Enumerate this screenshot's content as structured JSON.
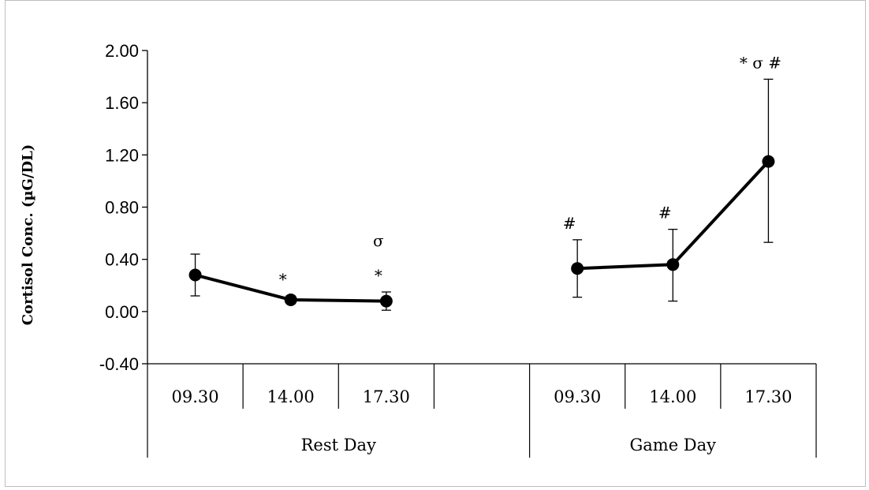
{
  "chart_data": {
    "type": "line",
    "ylabel": "Cortisol Conc. (µG/DL)",
    "ylim": [
      -0.4,
      2.0
    ],
    "yticks": [
      -0.4,
      0.0,
      0.4,
      0.8,
      1.2,
      1.6,
      2.0
    ],
    "ytick_labels": [
      "-0.40",
      "0.00",
      "0.40",
      "0.80",
      "1.20",
      "1.60",
      "2.00"
    ],
    "grid": false,
    "legend": "none",
    "groups": [
      {
        "label": "Rest Day",
        "categories": [
          "09.30",
          "14.00",
          "17.30",
          ""
        ],
        "values": [
          0.28,
          0.09,
          0.08,
          null
        ],
        "error_upper": [
          0.44,
          0.12,
          0.15,
          null
        ],
        "error_lower": [
          0.12,
          0.06,
          0.01,
          null
        ],
        "annotations": [
          "",
          "*",
          "σ\n*",
          ""
        ]
      },
      {
        "label": "Game Day",
        "categories": [
          "09.30",
          "14.00",
          "17.30"
        ],
        "values": [
          0.33,
          0.36,
          1.15
        ],
        "error_upper": [
          0.55,
          0.63,
          1.78
        ],
        "error_lower": [
          0.11,
          0.08,
          0.53
        ],
        "annotations": [
          "#",
          "#",
          "* σ  #"
        ]
      }
    ],
    "colors": {
      "line": "#000000",
      "marker": "#000000",
      "axis": "#000000"
    }
  }
}
